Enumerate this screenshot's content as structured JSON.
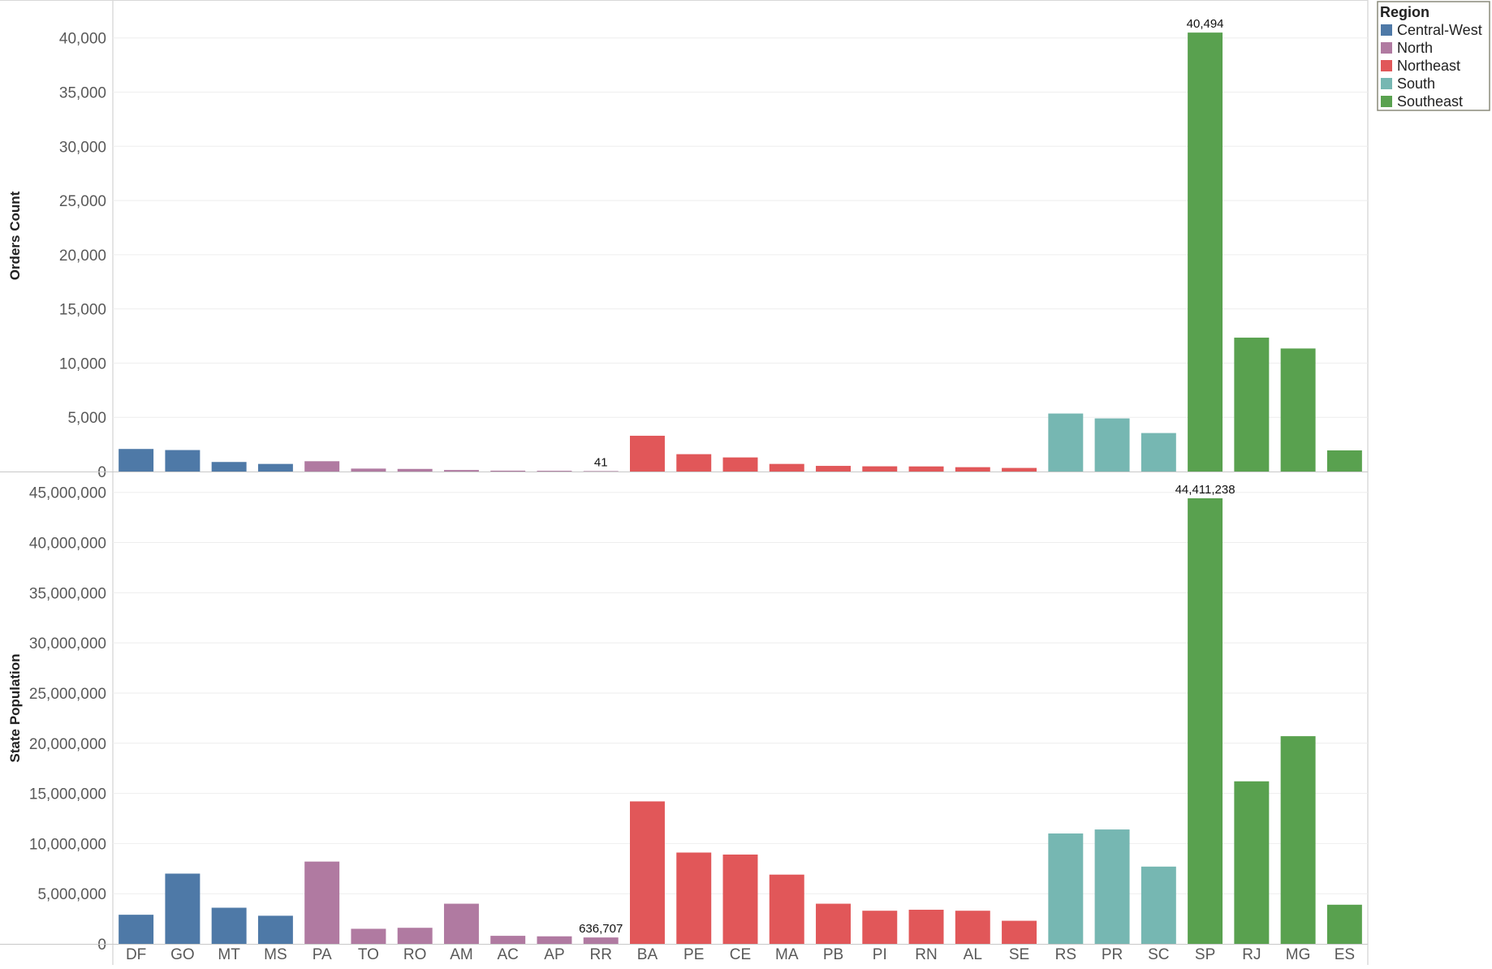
{
  "legend": {
    "title": "Region",
    "items": [
      {
        "name": "Central-West",
        "color": "#4e79a7"
      },
      {
        "name": "North",
        "color": "#b07aa1"
      },
      {
        "name": "Northeast",
        "color": "#e15759"
      },
      {
        "name": "South",
        "color": "#76b7b2"
      },
      {
        "name": "Southeast",
        "color": "#59a14f"
      }
    ]
  },
  "chart_data": [
    {
      "type": "bar",
      "title": "",
      "ylabel": "Orders Count",
      "xlabel": "",
      "ylim": [
        0,
        43500
      ],
      "yticks": [
        0,
        5000,
        10000,
        15000,
        20000,
        25000,
        30000,
        35000,
        40000
      ],
      "ytick_labels": [
        "0",
        "5,000",
        "10,000",
        "15,000",
        "20,000",
        "25,000",
        "30,000",
        "35,000",
        "40,000"
      ],
      "grid": true,
      "categories": [
        "DF",
        "GO",
        "MT",
        "MS",
        "PA",
        "TO",
        "RO",
        "AM",
        "AC",
        "AP",
        "RR",
        "BA",
        "PE",
        "CE",
        "MA",
        "PB",
        "PI",
        "RN",
        "AL",
        "SE",
        "RS",
        "PR",
        "SC",
        "SP",
        "RJ",
        "MG",
        "ES"
      ],
      "regions": [
        "Central-West",
        "Central-West",
        "Central-West",
        "Central-West",
        "North",
        "North",
        "North",
        "North",
        "North",
        "North",
        "North",
        "Northeast",
        "Northeast",
        "Northeast",
        "Northeast",
        "Northeast",
        "Northeast",
        "Northeast",
        "Northeast",
        "Northeast",
        "South",
        "South",
        "South",
        "Southeast",
        "Southeast",
        "Southeast",
        "Southeast"
      ],
      "values": [
        2080,
        1980,
        880,
        700,
        950,
        270,
        240,
        140,
        80,
        68,
        41,
        3300,
        1600,
        1300,
        700,
        520,
        480,
        470,
        400,
        330,
        5350,
        4900,
        3550,
        40494,
        12350,
        11350,
        1950
      ],
      "data_labels": [
        {
          "category": "RR",
          "text": "41"
        },
        {
          "category": "SP",
          "text": "40,494"
        }
      ]
    },
    {
      "type": "bar",
      "title": "",
      "ylabel": "State Population",
      "xlabel": "",
      "ylim": [
        0,
        47000000
      ],
      "yticks": [
        0,
        5000000,
        10000000,
        15000000,
        20000000,
        25000000,
        30000000,
        35000000,
        40000000,
        45000000
      ],
      "ytick_labels": [
        "0",
        "5,000,000",
        "10,000,000",
        "15,000,000",
        "20,000,000",
        "25,000,000",
        "30,000,000",
        "35,000,000",
        "40,000,000",
        "45,000,000"
      ],
      "grid": true,
      "categories": [
        "DF",
        "GO",
        "MT",
        "MS",
        "PA",
        "TO",
        "RO",
        "AM",
        "AC",
        "AP",
        "RR",
        "BA",
        "PE",
        "CE",
        "MA",
        "PB",
        "PI",
        "RN",
        "AL",
        "SE",
        "RS",
        "PR",
        "SC",
        "SP",
        "RJ",
        "MG",
        "ES"
      ],
      "regions": [
        "Central-West",
        "Central-West",
        "Central-West",
        "Central-West",
        "North",
        "North",
        "North",
        "North",
        "North",
        "North",
        "North",
        "Northeast",
        "Northeast",
        "Northeast",
        "Northeast",
        "Northeast",
        "Northeast",
        "Northeast",
        "Northeast",
        "Northeast",
        "South",
        "South",
        "South",
        "Southeast",
        "Southeast",
        "Southeast",
        "Southeast"
      ],
      "values": [
        2900000,
        7000000,
        3600000,
        2800000,
        8200000,
        1500000,
        1600000,
        4000000,
        800000,
        750000,
        636707,
        14200000,
        9100000,
        8900000,
        6900000,
        4000000,
        3300000,
        3400000,
        3300000,
        2300000,
        11000000,
        11400000,
        7700000,
        44411238,
        16200000,
        20700000,
        3900000
      ],
      "data_labels": [
        {
          "category": "RR",
          "text": "636,707"
        },
        {
          "category": "SP",
          "text": "44,411,238"
        }
      ]
    }
  ]
}
